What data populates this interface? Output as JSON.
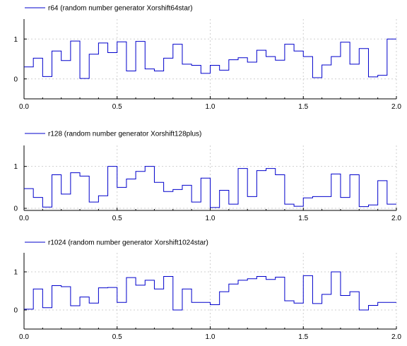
{
  "chart_data": [
    {
      "type": "line",
      "step": true,
      "legend_position": "top-left",
      "grid": true,
      "xlim": [
        0,
        2
      ],
      "ylim": [
        -0.5,
        1.5
      ],
      "x_ticks": [
        0,
        0.5,
        1,
        1.5,
        2
      ],
      "x_tick_labels": [
        "0.0",
        "0.5",
        "1.0",
        "1.5",
        "2.0"
      ],
      "y_ticks": [
        0,
        1
      ],
      "y_tick_labels": [
        "0",
        "1"
      ],
      "series": [
        {
          "name": "r64 (random number generator Xorshift64star)",
          "color": "#0000cc",
          "x": [
            0,
            0.05,
            0.1,
            0.15,
            0.2,
            0.25,
            0.3,
            0.35,
            0.4,
            0.45,
            0.5,
            0.55,
            0.6,
            0.65,
            0.7,
            0.75,
            0.8,
            0.85,
            0.9,
            0.95,
            1.0,
            1.05,
            1.1,
            1.15,
            1.2,
            1.25,
            1.3,
            1.35,
            1.4,
            1.45,
            1.5,
            1.55,
            1.6,
            1.65,
            1.7,
            1.75,
            1.8,
            1.85,
            1.9,
            1.95,
            2.0
          ],
          "values": [
            0.3,
            0.52,
            0.06,
            0.7,
            0.46,
            0.95,
            0.01,
            0.62,
            0.9,
            0.66,
            0.93,
            0.2,
            0.94,
            0.25,
            0.2,
            0.52,
            0.87,
            0.37,
            0.34,
            0.14,
            0.34,
            0.22,
            0.48,
            0.53,
            0.42,
            0.72,
            0.56,
            0.47,
            0.87,
            0.7,
            0.56,
            0.03,
            0.35,
            0.56,
            0.92,
            0.37,
            0.76,
            0.05,
            0.09,
            1.0,
            1.0
          ]
        }
      ]
    },
    {
      "type": "line",
      "step": true,
      "legend_position": "top-left",
      "grid": true,
      "xlim": [
        0,
        2
      ],
      "ylim": [
        -0.05,
        1.5
      ],
      "x_ticks": [
        0,
        0.5,
        1,
        1.5,
        2
      ],
      "x_tick_labels": [
        "0.0",
        "0.5",
        "1.0",
        "1.5",
        "2.0"
      ],
      "y_ticks": [
        0,
        1
      ],
      "y_tick_labels": [
        "0",
        "1"
      ],
      "series": [
        {
          "name": "r128 (random number generator Xorshift128plus)",
          "color": "#0000cc",
          "x": [
            0,
            0.05,
            0.1,
            0.15,
            0.2,
            0.25,
            0.3,
            0.35,
            0.4,
            0.45,
            0.5,
            0.55,
            0.6,
            0.65,
            0.7,
            0.75,
            0.8,
            0.85,
            0.9,
            0.95,
            1.0,
            1.05,
            1.1,
            1.15,
            1.2,
            1.25,
            1.3,
            1.35,
            1.4,
            1.45,
            1.5,
            1.55,
            1.6,
            1.65,
            1.7,
            1.75,
            1.8,
            1.85,
            1.9,
            1.95,
            2.0
          ],
          "values": [
            0.47,
            0.26,
            0.03,
            0.8,
            0.34,
            0.85,
            0.77,
            0.15,
            0.3,
            1.0,
            0.5,
            0.7,
            0.88,
            1.0,
            0.62,
            0.4,
            0.45,
            0.55,
            0.15,
            0.72,
            0.02,
            0.43,
            0.1,
            0.95,
            0.28,
            0.9,
            0.95,
            0.8,
            0.1,
            0.05,
            0.25,
            0.28,
            0.28,
            0.82,
            0.26,
            0.8,
            0.04,
            0.08,
            0.66,
            0.1,
            0.1
          ]
        }
      ]
    },
    {
      "type": "line",
      "step": true,
      "legend_position": "top-left",
      "grid": true,
      "xlim": [
        0,
        2
      ],
      "ylim": [
        -0.5,
        1.5
      ],
      "x_ticks": [
        0,
        0.5,
        1,
        1.5,
        2
      ],
      "x_tick_labels": [
        "0.0",
        "0.5",
        "1.0",
        "1.5",
        "2.0"
      ],
      "y_ticks": [
        0,
        1
      ],
      "y_tick_labels": [
        "0",
        "1"
      ],
      "series": [
        {
          "name": "r1024 (random number generator Xorshift1024star)",
          "color": "#0000cc",
          "x": [
            0,
            0.05,
            0.1,
            0.15,
            0.2,
            0.25,
            0.3,
            0.35,
            0.4,
            0.45,
            0.5,
            0.55,
            0.6,
            0.65,
            0.7,
            0.75,
            0.8,
            0.85,
            0.9,
            0.95,
            1.0,
            1.05,
            1.1,
            1.15,
            1.2,
            1.25,
            1.3,
            1.35,
            1.4,
            1.45,
            1.5,
            1.55,
            1.6,
            1.65,
            1.7,
            1.75,
            1.8,
            1.85,
            1.9,
            1.95,
            2.0
          ],
          "values": [
            0.02,
            0.55,
            0.06,
            0.64,
            0.61,
            0.11,
            0.34,
            0.18,
            0.58,
            0.59,
            0.2,
            0.85,
            0.65,
            0.78,
            0.55,
            0.88,
            0.0,
            0.55,
            0.2,
            0.2,
            0.14,
            0.48,
            0.68,
            0.78,
            0.82,
            0.88,
            0.8,
            0.86,
            0.24,
            0.18,
            0.9,
            0.17,
            0.41,
            1.0,
            0.38,
            0.48,
            0.0,
            0.12,
            0.2,
            0.2,
            0.2
          ]
        }
      ]
    }
  ]
}
